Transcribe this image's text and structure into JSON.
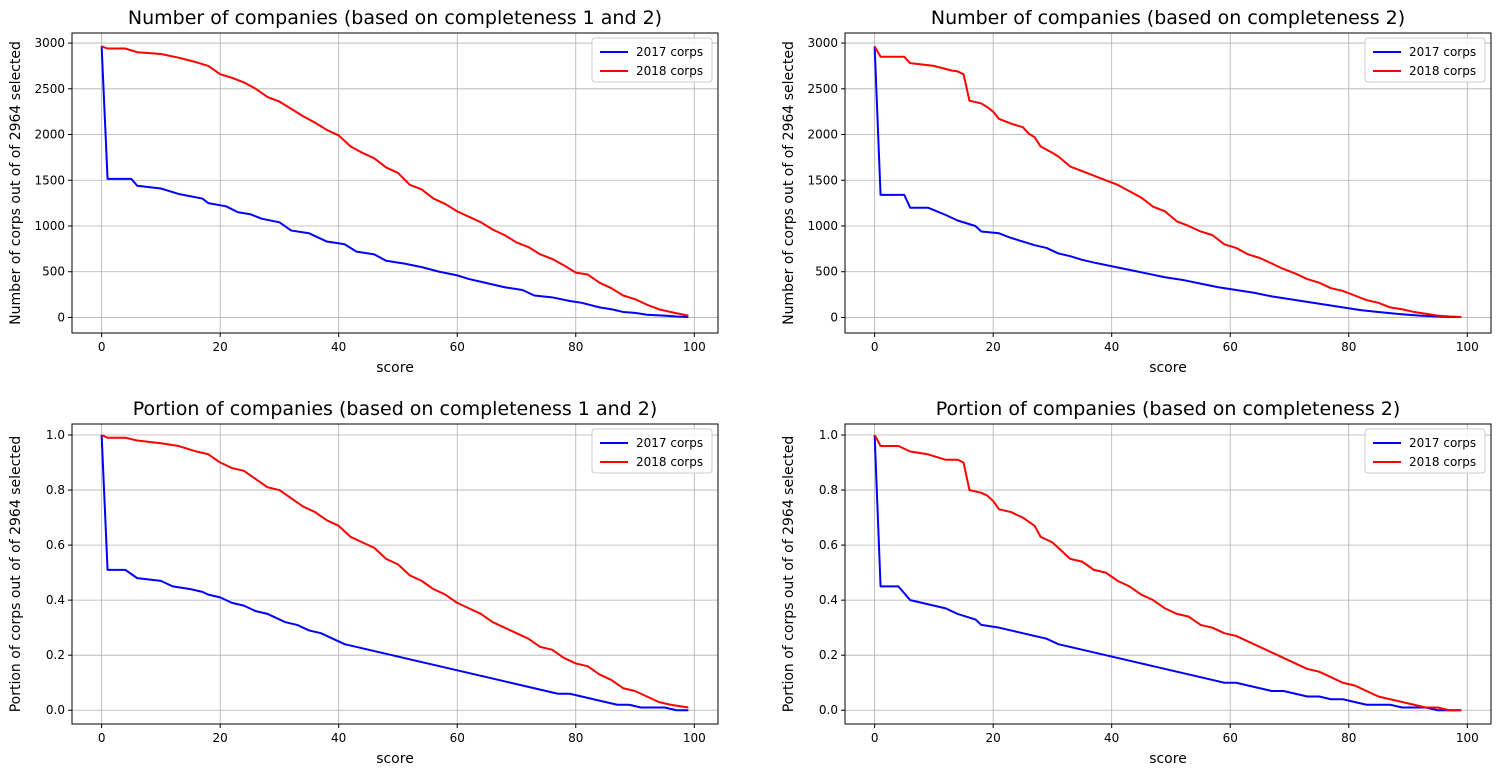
{
  "chart_data": [
    {
      "type": "line",
      "title": "Number of companies (based on completeness 1 and 2)",
      "xlabel": "score",
      "ylabel": "Number of corps out of of 2964 selected",
      "xlim": [
        -5,
        104
      ],
      "ylim": [
        -170,
        3110
      ],
      "xticks": [
        0,
        20,
        40,
        60,
        80,
        100
      ],
      "xtick_labels": [
        "0",
        "20",
        "40",
        "60",
        "80",
        "100"
      ],
      "yticks": [
        0,
        500,
        1000,
        1500,
        2000,
        2500,
        3000
      ],
      "ytick_labels": [
        "0",
        "500",
        "1000",
        "1500",
        "2000",
        "2500",
        "3000"
      ],
      "grid": true,
      "legend_position": "top-right",
      "series": [
        {
          "name": "2017 corps",
          "color": "#0000ff",
          "x": [
            0,
            1,
            5,
            6,
            10,
            13,
            17,
            18,
            21,
            23,
            25,
            27,
            30,
            32,
            35,
            38,
            41,
            43,
            46,
            48,
            51,
            54,
            57,
            60,
            62,
            64,
            66,
            68,
            71,
            73,
            76,
            79,
            81,
            84,
            86,
            88,
            90,
            92,
            95,
            97,
            99
          ],
          "y": [
            2964,
            1515,
            1515,
            1440,
            1410,
            1350,
            1300,
            1250,
            1215,
            1150,
            1130,
            1080,
            1040,
            950,
            920,
            830,
            800,
            720,
            690,
            620,
            590,
            550,
            500,
            460,
            420,
            390,
            360,
            330,
            300,
            240,
            220,
            180,
            160,
            110,
            90,
            60,
            50,
            30,
            20,
            10,
            5
          ]
        },
        {
          "name": "2018 corps",
          "color": "#ff0000",
          "x": [
            0,
            1,
            4,
            6,
            10,
            13,
            16,
            18,
            20,
            22,
            24,
            26,
            28,
            30,
            32,
            34,
            36,
            38,
            40,
            42,
            44,
            46,
            48,
            50,
            52,
            54,
            56,
            58,
            60,
            62,
            64,
            66,
            68,
            70,
            72,
            74,
            76,
            78,
            80,
            82,
            84,
            86,
            88,
            90,
            92,
            94,
            96,
            99
          ],
          "y": [
            2964,
            2940,
            2940,
            2900,
            2880,
            2840,
            2790,
            2750,
            2660,
            2620,
            2570,
            2500,
            2410,
            2360,
            2280,
            2200,
            2130,
            2050,
            1990,
            1870,
            1800,
            1740,
            1640,
            1580,
            1450,
            1400,
            1300,
            1240,
            1160,
            1100,
            1040,
            960,
            900,
            820,
            770,
            690,
            640,
            570,
            490,
            470,
            380,
            320,
            240,
            200,
            140,
            90,
            60,
            20
          ]
        }
      ]
    },
    {
      "type": "line",
      "title": "Number of companies (based on completeness 2)",
      "xlabel": "score",
      "ylabel": "Number of corps out of of 2964 selected",
      "xlim": [
        -5,
        104
      ],
      "ylim": [
        -170,
        3110
      ],
      "xticks": [
        0,
        20,
        40,
        60,
        80,
        100
      ],
      "xtick_labels": [
        "0",
        "20",
        "40",
        "60",
        "80",
        "100"
      ],
      "yticks": [
        0,
        500,
        1000,
        1500,
        2000,
        2500,
        3000
      ],
      "ytick_labels": [
        "0",
        "500",
        "1000",
        "1500",
        "2000",
        "2500",
        "3000"
      ],
      "grid": true,
      "legend_position": "top-right",
      "series": [
        {
          "name": "2017 corps",
          "color": "#0000ff",
          "x": [
            0,
            1,
            5,
            6,
            9,
            12,
            14,
            17,
            18,
            21,
            23,
            25,
            27,
            29,
            31,
            33,
            35,
            37,
            40,
            43,
            46,
            49,
            52,
            55,
            58,
            61,
            64,
            67,
            70,
            73,
            76,
            79,
            82,
            85,
            88,
            90,
            92,
            95,
            97,
            99
          ],
          "y": [
            2964,
            1340,
            1340,
            1200,
            1200,
            1120,
            1060,
            1000,
            940,
            920,
            870,
            830,
            790,
            760,
            700,
            670,
            630,
            600,
            560,
            520,
            480,
            440,
            410,
            370,
            330,
            300,
            270,
            230,
            200,
            170,
            140,
            110,
            80,
            60,
            40,
            30,
            20,
            10,
            5,
            5
          ]
        },
        {
          "name": "2018 corps",
          "color": "#ff0000",
          "x": [
            0,
            1,
            5,
            6,
            10,
            13,
            14,
            15,
            16,
            18,
            19,
            20,
            21,
            23,
            25,
            26,
            27,
            28,
            30,
            31,
            33,
            35,
            37,
            39,
            41,
            43,
            45,
            47,
            49,
            51,
            53,
            55,
            57,
            59,
            61,
            63,
            65,
            67,
            69,
            71,
            73,
            75,
            77,
            79,
            81,
            83,
            85,
            87,
            89,
            91,
            93,
            95,
            97,
            99
          ],
          "y": [
            2964,
            2850,
            2850,
            2780,
            2750,
            2700,
            2690,
            2660,
            2370,
            2340,
            2300,
            2250,
            2170,
            2120,
            2080,
            2010,
            1970,
            1870,
            1800,
            1760,
            1650,
            1600,
            1550,
            1500,
            1450,
            1380,
            1310,
            1210,
            1160,
            1050,
            1000,
            940,
            900,
            800,
            760,
            690,
            650,
            590,
            530,
            480,
            420,
            380,
            320,
            290,
            240,
            190,
            160,
            110,
            90,
            60,
            40,
            20,
            10,
            5
          ]
        }
      ]
    },
    {
      "type": "line",
      "title": "Portion of companies (based on completeness 1 and 2)",
      "xlabel": "score",
      "ylabel": "Portion of corps out of of 2964 selected",
      "xlim": [
        -5,
        104
      ],
      "ylim": [
        -0.05,
        1.04
      ],
      "xticks": [
        0,
        20,
        40,
        60,
        80,
        100
      ],
      "xtick_labels": [
        "0",
        "20",
        "40",
        "60",
        "80",
        "100"
      ],
      "yticks": [
        0.0,
        0.2,
        0.4,
        0.6,
        0.8,
        1.0
      ],
      "ytick_labels": [
        "0.0",
        "0.2",
        "0.4",
        "0.6",
        "0.8",
        "1.0"
      ],
      "grid": true,
      "legend_position": "top-right",
      "series": [
        {
          "name": "2017 corps",
          "color": "#0000ff",
          "x": [
            0,
            1,
            4,
            6,
            10,
            12,
            15,
            17,
            18,
            20,
            22,
            24,
            26,
            28,
            30,
            31,
            33,
            35,
            37,
            39,
            41,
            43,
            45,
            47,
            49,
            51,
            53,
            55,
            57,
            59,
            61,
            63,
            65,
            67,
            69,
            71,
            73,
            75,
            77,
            79,
            81,
            83,
            85,
            87,
            89,
            91,
            93,
            95,
            97,
            99
          ],
          "y": [
            1.0,
            0.51,
            0.51,
            0.48,
            0.47,
            0.45,
            0.44,
            0.43,
            0.42,
            0.41,
            0.39,
            0.38,
            0.36,
            0.35,
            0.33,
            0.32,
            0.31,
            0.29,
            0.28,
            0.26,
            0.24,
            0.23,
            0.22,
            0.21,
            0.2,
            0.19,
            0.18,
            0.17,
            0.16,
            0.15,
            0.14,
            0.13,
            0.12,
            0.11,
            0.1,
            0.09,
            0.08,
            0.07,
            0.06,
            0.06,
            0.05,
            0.04,
            0.03,
            0.02,
            0.02,
            0.01,
            0.01,
            0.01,
            0.0,
            0.0
          ]
        },
        {
          "name": "2018 corps",
          "color": "#ff0000",
          "x": [
            0,
            1,
            4,
            6,
            10,
            13,
            16,
            18,
            20,
            22,
            24,
            26,
            28,
            30,
            32,
            34,
            36,
            38,
            40,
            42,
            44,
            46,
            48,
            50,
            52,
            54,
            56,
            58,
            60,
            62,
            64,
            66,
            68,
            70,
            72,
            74,
            76,
            78,
            80,
            82,
            84,
            86,
            88,
            90,
            92,
            94,
            96,
            99
          ],
          "y": [
            1.0,
            0.99,
            0.99,
            0.98,
            0.97,
            0.96,
            0.94,
            0.93,
            0.9,
            0.88,
            0.87,
            0.84,
            0.81,
            0.8,
            0.77,
            0.74,
            0.72,
            0.69,
            0.67,
            0.63,
            0.61,
            0.59,
            0.55,
            0.53,
            0.49,
            0.47,
            0.44,
            0.42,
            0.39,
            0.37,
            0.35,
            0.32,
            0.3,
            0.28,
            0.26,
            0.23,
            0.22,
            0.19,
            0.17,
            0.16,
            0.13,
            0.11,
            0.08,
            0.07,
            0.05,
            0.03,
            0.02,
            0.01
          ]
        }
      ]
    },
    {
      "type": "line",
      "title": "Portion of companies (based on completeness 2)",
      "xlabel": "score",
      "ylabel": "Portion of corps out of of 2964 selected",
      "xlim": [
        -5,
        104
      ],
      "ylim": [
        -0.05,
        1.04
      ],
      "xticks": [
        0,
        20,
        40,
        60,
        80,
        100
      ],
      "xtick_labels": [
        "0",
        "20",
        "40",
        "60",
        "80",
        "100"
      ],
      "yticks": [
        0.0,
        0.2,
        0.4,
        0.6,
        0.8,
        1.0
      ],
      "ytick_labels": [
        "0.0",
        "0.2",
        "0.4",
        "0.6",
        "0.8",
        "1.0"
      ],
      "grid": true,
      "legend_position": "top-right",
      "series": [
        {
          "name": "2017 corps",
          "color": "#0000ff",
          "x": [
            0,
            1,
            4,
            6,
            10,
            12,
            14,
            17,
            18,
            21,
            23,
            25,
            27,
            29,
            31,
            33,
            35,
            37,
            39,
            41,
            43,
            45,
            47,
            49,
            51,
            53,
            55,
            57,
            59,
            61,
            63,
            65,
            67,
            69,
            71,
            73,
            75,
            77,
            79,
            81,
            83,
            85,
            87,
            89,
            91,
            93,
            95,
            97,
            99
          ],
          "y": [
            1.0,
            0.45,
            0.45,
            0.4,
            0.38,
            0.37,
            0.35,
            0.33,
            0.31,
            0.3,
            0.29,
            0.28,
            0.27,
            0.26,
            0.24,
            0.23,
            0.22,
            0.21,
            0.2,
            0.19,
            0.18,
            0.17,
            0.16,
            0.15,
            0.14,
            0.13,
            0.12,
            0.11,
            0.1,
            0.1,
            0.09,
            0.08,
            0.07,
            0.07,
            0.06,
            0.05,
            0.05,
            0.04,
            0.04,
            0.03,
            0.02,
            0.02,
            0.02,
            0.01,
            0.01,
            0.01,
            0.0,
            0.0,
            0.0
          ]
        },
        {
          "name": "2018 corps",
          "color": "#ff0000",
          "x": [
            0,
            1,
            4,
            6,
            9,
            12,
            14,
            15,
            16,
            18,
            19,
            20,
            21,
            23,
            25,
            27,
            28,
            30,
            31,
            33,
            35,
            37,
            39,
            41,
            43,
            45,
            47,
            49,
            51,
            53,
            55,
            57,
            59,
            61,
            63,
            65,
            67,
            69,
            71,
            73,
            75,
            77,
            79,
            81,
            83,
            85,
            87,
            89,
            91,
            93,
            95,
            97,
            99
          ],
          "y": [
            1.0,
            0.96,
            0.96,
            0.94,
            0.93,
            0.91,
            0.91,
            0.9,
            0.8,
            0.79,
            0.78,
            0.76,
            0.73,
            0.72,
            0.7,
            0.67,
            0.63,
            0.61,
            0.59,
            0.55,
            0.54,
            0.51,
            0.5,
            0.47,
            0.45,
            0.42,
            0.4,
            0.37,
            0.35,
            0.34,
            0.31,
            0.3,
            0.28,
            0.27,
            0.25,
            0.23,
            0.21,
            0.19,
            0.17,
            0.15,
            0.14,
            0.12,
            0.1,
            0.09,
            0.07,
            0.05,
            0.04,
            0.03,
            0.02,
            0.01,
            0.01,
            0.0,
            0.0
          ]
        }
      ]
    }
  ]
}
